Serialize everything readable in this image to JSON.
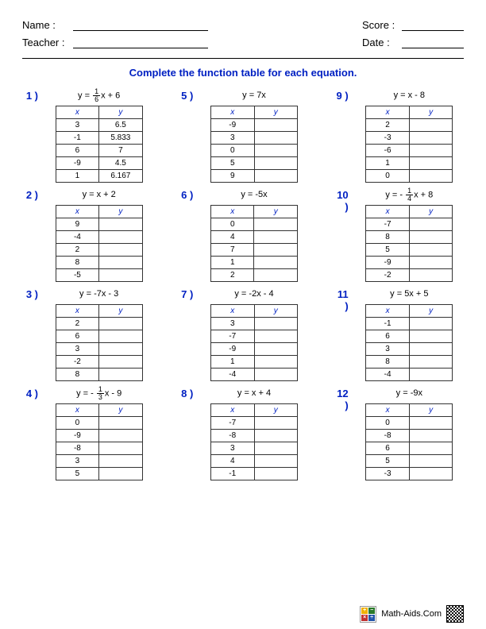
{
  "header": {
    "name_label": "Name :",
    "teacher_label": "Teacher :",
    "score_label": "Score :",
    "date_label": "Date :"
  },
  "instruction": "Complete the function table for each equation.",
  "table_headers": {
    "x": "x",
    "y": "y"
  },
  "problems": [
    {
      "num": "1 )",
      "eq_prefix": "y = ",
      "frac_num": "1",
      "frac_den": "6",
      "eq_suffix": "x + 6",
      "rows": [
        [
          "3",
          "6.5"
        ],
        [
          "-1",
          "5.833"
        ],
        [
          "6",
          "7"
        ],
        [
          "-9",
          "4.5"
        ],
        [
          "1",
          "6.167"
        ]
      ]
    },
    {
      "num": "2 )",
      "eq_plain": "y =  x + 2",
      "rows": [
        [
          "9",
          ""
        ],
        [
          "-4",
          ""
        ],
        [
          "2",
          ""
        ],
        [
          "8",
          ""
        ],
        [
          "-5",
          ""
        ]
      ]
    },
    {
      "num": "3 )",
      "eq_plain": "y =  -7x - 3",
      "rows": [
        [
          "2",
          ""
        ],
        [
          "6",
          ""
        ],
        [
          "3",
          ""
        ],
        [
          "-2",
          ""
        ],
        [
          "8",
          ""
        ]
      ]
    },
    {
      "num": "4 )",
      "eq_prefix": "y = - ",
      "frac_num": "1",
      "frac_den": "3",
      "eq_suffix": "x - 9",
      "rows": [
        [
          "0",
          ""
        ],
        [
          "-9",
          ""
        ],
        [
          "-8",
          ""
        ],
        [
          "3",
          ""
        ],
        [
          "5",
          ""
        ]
      ]
    },
    {
      "num": "5 )",
      "eq_plain": "y =  7x",
      "rows": [
        [
          "-9",
          ""
        ],
        [
          "3",
          ""
        ],
        [
          "0",
          ""
        ],
        [
          "5",
          ""
        ],
        [
          "9",
          ""
        ]
      ]
    },
    {
      "num": "6 )",
      "eq_plain": "y =  -5x",
      "rows": [
        [
          "0",
          ""
        ],
        [
          "4",
          ""
        ],
        [
          "7",
          ""
        ],
        [
          "1",
          ""
        ],
        [
          "2",
          ""
        ]
      ]
    },
    {
      "num": "7 )",
      "eq_plain": "y =  -2x - 4",
      "rows": [
        [
          "3",
          ""
        ],
        [
          "-7",
          ""
        ],
        [
          "-9",
          ""
        ],
        [
          "1",
          ""
        ],
        [
          "-4",
          ""
        ]
      ]
    },
    {
      "num": "8 )",
      "eq_plain": "y =  x + 4",
      "rows": [
        [
          "-7",
          ""
        ],
        [
          "-8",
          ""
        ],
        [
          "3",
          ""
        ],
        [
          "4",
          ""
        ],
        [
          "-1",
          ""
        ]
      ]
    },
    {
      "num": "9 )",
      "eq_plain": "y =  x - 8",
      "rows": [
        [
          "2",
          ""
        ],
        [
          "-3",
          ""
        ],
        [
          "-6",
          ""
        ],
        [
          "1",
          ""
        ],
        [
          "0",
          ""
        ]
      ]
    },
    {
      "num": "10 )",
      "eq_prefix": "y = - ",
      "frac_num": "1",
      "frac_den": "4",
      "eq_suffix": "x + 8",
      "rows": [
        [
          "-7",
          ""
        ],
        [
          "8",
          ""
        ],
        [
          "5",
          ""
        ],
        [
          "-9",
          ""
        ],
        [
          "-2",
          ""
        ]
      ]
    },
    {
      "num": "11 )",
      "eq_plain": "y =  5x + 5",
      "rows": [
        [
          "-1",
          ""
        ],
        [
          "6",
          ""
        ],
        [
          "3",
          ""
        ],
        [
          "8",
          ""
        ],
        [
          "-4",
          ""
        ]
      ]
    },
    {
      "num": "12 )",
      "eq_plain": "y =  -9x",
      "rows": [
        [
          "0",
          ""
        ],
        [
          "-8",
          ""
        ],
        [
          "6",
          ""
        ],
        [
          "5",
          ""
        ],
        [
          "-3",
          ""
        ]
      ]
    }
  ],
  "footer": {
    "site": "Math-Aids.Com",
    "logo_colors": [
      "#f0b000",
      "#2a7a2a",
      "#c03030",
      "#2255aa"
    ],
    "logo_chars": [
      "+",
      "−",
      "×",
      "÷"
    ]
  }
}
